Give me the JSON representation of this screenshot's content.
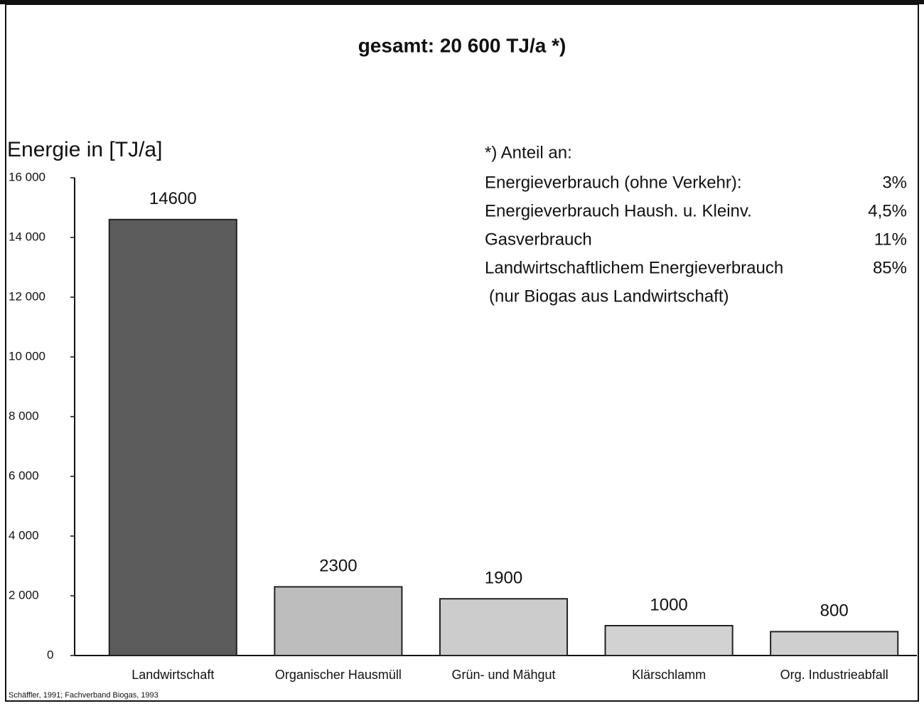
{
  "chart_data": {
    "type": "bar",
    "title": "gesamt: 20 600 TJ/a *)",
    "y_label": "Energie in [TJ/a]",
    "categories": [
      "Landwirtschaft",
      "Organischer Hausmüll",
      "Grün- und Mähgut",
      "Klärschlamm",
      "Org. Industrieabfall"
    ],
    "values": [
      14600,
      2300,
      1900,
      1000,
      800
    ],
    "colors": [
      "#5c5c5c",
      "#bdbdbd",
      "#cccccc",
      "#d2d2d2",
      "#cfcfcf"
    ],
    "ylim": [
      0,
      16000
    ],
    "yticks": [
      0,
      {
        "value": 2000,
        "label": "2 000"
      },
      {
        "value": 4000,
        "label": "4 000"
      },
      {
        "value": 6000,
        "label": "6 000"
      },
      {
        "value": 8000,
        "label": "8 000"
      },
      {
        "value": 10000,
        "label": "10 000"
      },
      {
        "value": 12000,
        "label": "12 000"
      },
      {
        "value": 14000,
        "label": "14 000"
      },
      {
        "value": 16000,
        "label": "16 000"
      }
    ],
    "annotation": {
      "heading": "*) Anteil an:",
      "rows": [
        [
          "Energieverbrauch (ohne Verkehr):",
          "3%"
        ],
        [
          "Energieverbrauch Haush. u. Kleinv.",
          "4,5%"
        ],
        [
          "Gasverbrauch",
          "11%"
        ],
        [
          "Landwirtschaftlichem Energieverbrauch",
          "85%"
        ]
      ],
      "note": "(nur Biogas aus Landwirtschaft)"
    },
    "source": "Schäffler, 1991; Fachverband Biogas, 1993"
  }
}
